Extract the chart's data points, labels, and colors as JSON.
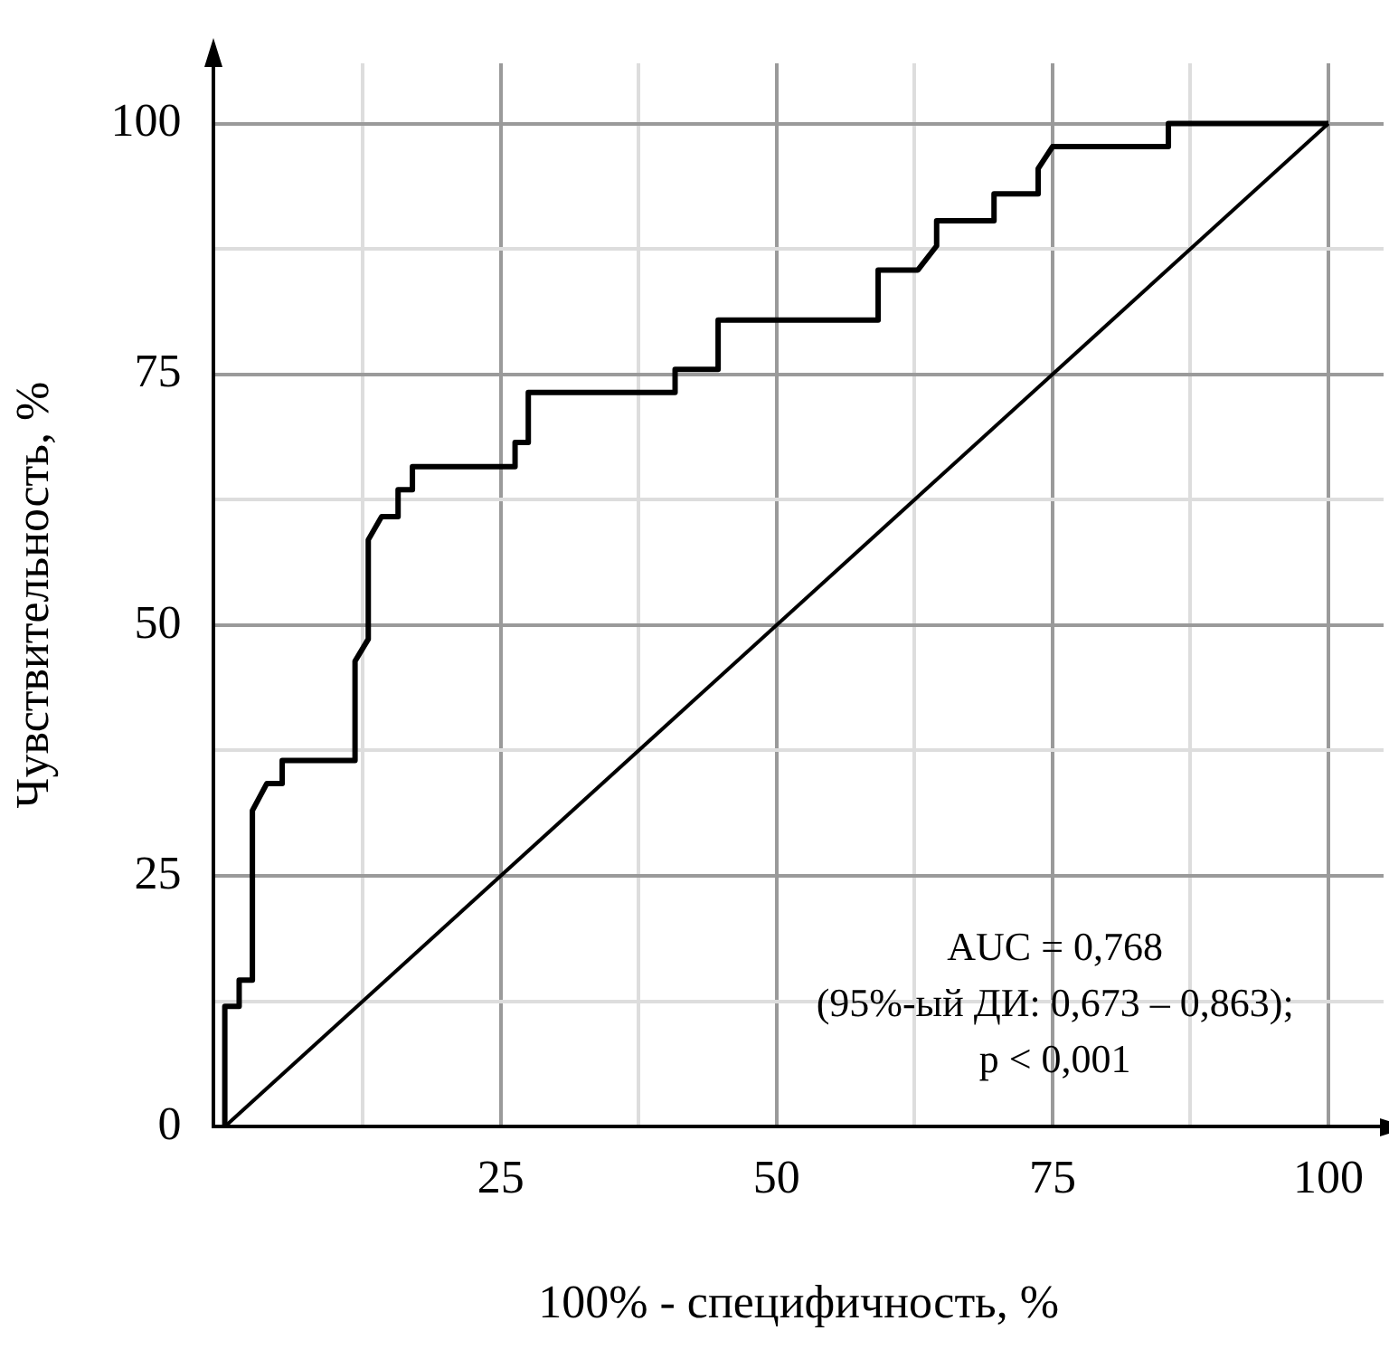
{
  "chart_data": {
    "type": "line",
    "xlabel": "100% - специфичность, %",
    "ylabel": "Чувствительность, %",
    "xlim": [
      -1,
      105
    ],
    "ylim": [
      0,
      106
    ],
    "xticks": [
      {
        "value": 12.5,
        "label": null
      },
      25,
      {
        "value": 37.5,
        "label": null
      },
      50,
      {
        "value": 62.5,
        "label": null
      },
      75,
      {
        "value": 87.5,
        "label": null
      },
      100
    ],
    "yticks": [
      0,
      {
        "value": 12.5,
        "label": null
      },
      25,
      {
        "value": 37.5,
        "label": null
      },
      50,
      {
        "value": 62.5,
        "label": null
      },
      75,
      {
        "value": 87.5,
        "label": null
      },
      100
    ],
    "grid": true,
    "legend": false,
    "marker": "none",
    "line_style": "solid",
    "series": [
      {
        "color": "#000000",
        "x": [
          0,
          0,
          1.3,
          1.3,
          2.5,
          2.5,
          3.8,
          5.2,
          5.2,
          11.8,
          11.8,
          13,
          13,
          14.2,
          15.7,
          15.7,
          17,
          17,
          26.3,
          26.3,
          27.5,
          27.5,
          40.8,
          40.8,
          44.7,
          44.7,
          59.2,
          59.2,
          62.8,
          64.5,
          64.5,
          69.7,
          69.7,
          73.7,
          73.7,
          75,
          85.5,
          85.5,
          100
        ],
        "values": [
          0,
          12,
          12,
          14.6,
          14.6,
          31.5,
          34.2,
          34.2,
          36.5,
          36.5,
          46.4,
          48.6,
          58.5,
          60.8,
          60.8,
          63.5,
          63.5,
          65.8,
          65.8,
          68.2,
          68.2,
          73.2,
          73.2,
          75.5,
          75.5,
          80.4,
          80.4,
          85.4,
          85.4,
          87.8,
          90.3,
          90.3,
          93,
          93,
          95.5,
          97.7,
          97.7,
          100,
          100
        ]
      },
      {
        "color": "#000000",
        "x": [
          0,
          100
        ],
        "values": [
          0,
          100
        ]
      }
    ],
    "annotations": [
      "AUC = 0,768",
      "(95%-ый ДИ: 0,673 – 0,863);",
      "p < 0,001"
    ]
  }
}
